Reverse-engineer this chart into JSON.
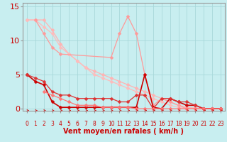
{
  "bg_color": "#c8eef0",
  "grid_color": "#a8d8da",
  "xlim": [
    -0.5,
    23.5
  ],
  "ylim": [
    -0.3,
    15.5
  ],
  "xlabel": "Vent moyen/en rafales ( km/h )",
  "yticks": [
    0,
    5,
    10,
    15
  ],
  "xticks": [
    0,
    1,
    2,
    3,
    4,
    5,
    6,
    7,
    8,
    9,
    10,
    11,
    12,
    13,
    14,
    15,
    16,
    17,
    18,
    19,
    20,
    21,
    22,
    23
  ],
  "lines": [
    {
      "x": [
        0,
        1,
        2,
        3,
        4,
        5,
        6,
        7,
        8,
        9,
        10,
        11,
        12,
        13,
        14,
        15,
        16,
        17,
        18,
        19,
        20,
        21,
        22,
        23
      ],
      "y": [
        13,
        13,
        13,
        11.5,
        9.5,
        8,
        7,
        6,
        5.5,
        5,
        4.5,
        4,
        3.5,
        3,
        2.5,
        2,
        1.5,
        1,
        0.5,
        0.2,
        0.1,
        0,
        0,
        0
      ],
      "color": "#ffb3b3",
      "lw": 0.9,
      "marker": "D",
      "ms": 2.5
    },
    {
      "x": [
        0,
        1,
        2,
        3,
        4,
        5,
        6,
        7,
        8,
        9,
        10,
        11,
        12,
        13,
        14,
        15,
        16,
        17,
        18,
        19,
        20,
        21,
        22,
        23
      ],
      "y": [
        13,
        13,
        12,
        11,
        9,
        8,
        7,
        6,
        5,
        4.5,
        4,
        3.5,
        3,
        2.5,
        2,
        1.5,
        1,
        0.5,
        0.2,
        0,
        0,
        0,
        0,
        0
      ],
      "color": "#ffbbbb",
      "lw": 0.9,
      "marker": "D",
      "ms": 2.5
    },
    {
      "x": [
        1,
        2,
        3,
        4,
        10,
        11,
        12,
        13,
        14,
        15,
        16,
        17,
        18,
        19,
        20,
        21,
        22,
        23
      ],
      "y": [
        13,
        11,
        9,
        8,
        7.5,
        11,
        13.5,
        11,
        5,
        0.5,
        1.5,
        1,
        0.5,
        0,
        0,
        0,
        0,
        0
      ],
      "color": "#ff9999",
      "lw": 0.9,
      "marker": "D",
      "ms": 2.5
    },
    {
      "x": [
        0,
        1,
        2,
        3,
        4,
        5,
        6,
        7,
        8,
        9,
        10,
        11,
        12,
        13,
        14,
        15,
        16,
        17,
        18,
        19,
        20,
        21,
        22,
        23
      ],
      "y": [
        5,
        4,
        3.5,
        1,
        0.2,
        0.2,
        0.2,
        0.2,
        0.2,
        0.2,
        0.2,
        0.2,
        0.2,
        0.2,
        5,
        0.2,
        0,
        1.5,
        1,
        0.5,
        0.5,
        0,
        0,
        0
      ],
      "color": "#cc0000",
      "lw": 1.2,
      "marker": "D",
      "ms": 2.5
    },
    {
      "x": [
        0,
        1,
        2,
        3,
        4,
        5,
        6,
        7,
        8,
        9,
        10,
        11,
        12,
        13,
        14,
        15,
        16,
        17,
        18,
        19,
        20,
        21,
        22,
        23
      ],
      "y": [
        5,
        4.5,
        4,
        2.5,
        2,
        2,
        1.5,
        1.5,
        1.5,
        1.5,
        1.5,
        1,
        1,
        2,
        2,
        0,
        1.5,
        1.5,
        1,
        1,
        0.5,
        0,
        0,
        0
      ],
      "color": "#dd3333",
      "lw": 0.9,
      "marker": "D",
      "ms": 2.5
    },
    {
      "x": [
        2,
        3,
        4,
        5,
        6,
        7,
        8,
        9,
        10,
        11,
        12,
        13,
        14,
        15,
        16,
        17,
        18,
        19,
        20,
        21,
        22,
        23
      ],
      "y": [
        2.5,
        2,
        1.5,
        1,
        0.5,
        0.5,
        0.5,
        0.2,
        0.2,
        0.2,
        0.2,
        0,
        0,
        0,
        0,
        0,
        0,
        0,
        0,
        0,
        0,
        0
      ],
      "color": "#ff7777",
      "lw": 0.9,
      "marker": "D",
      "ms": 2.5
    }
  ],
  "arrow_color": "#cc2222",
  "xlabel_color": "#cc0000",
  "xlabel_fontsize": 7,
  "tick_color": "#cc0000",
  "ytick_fontsize": 8,
  "xtick_fontsize": 5.5,
  "axis_color": "#999999"
}
